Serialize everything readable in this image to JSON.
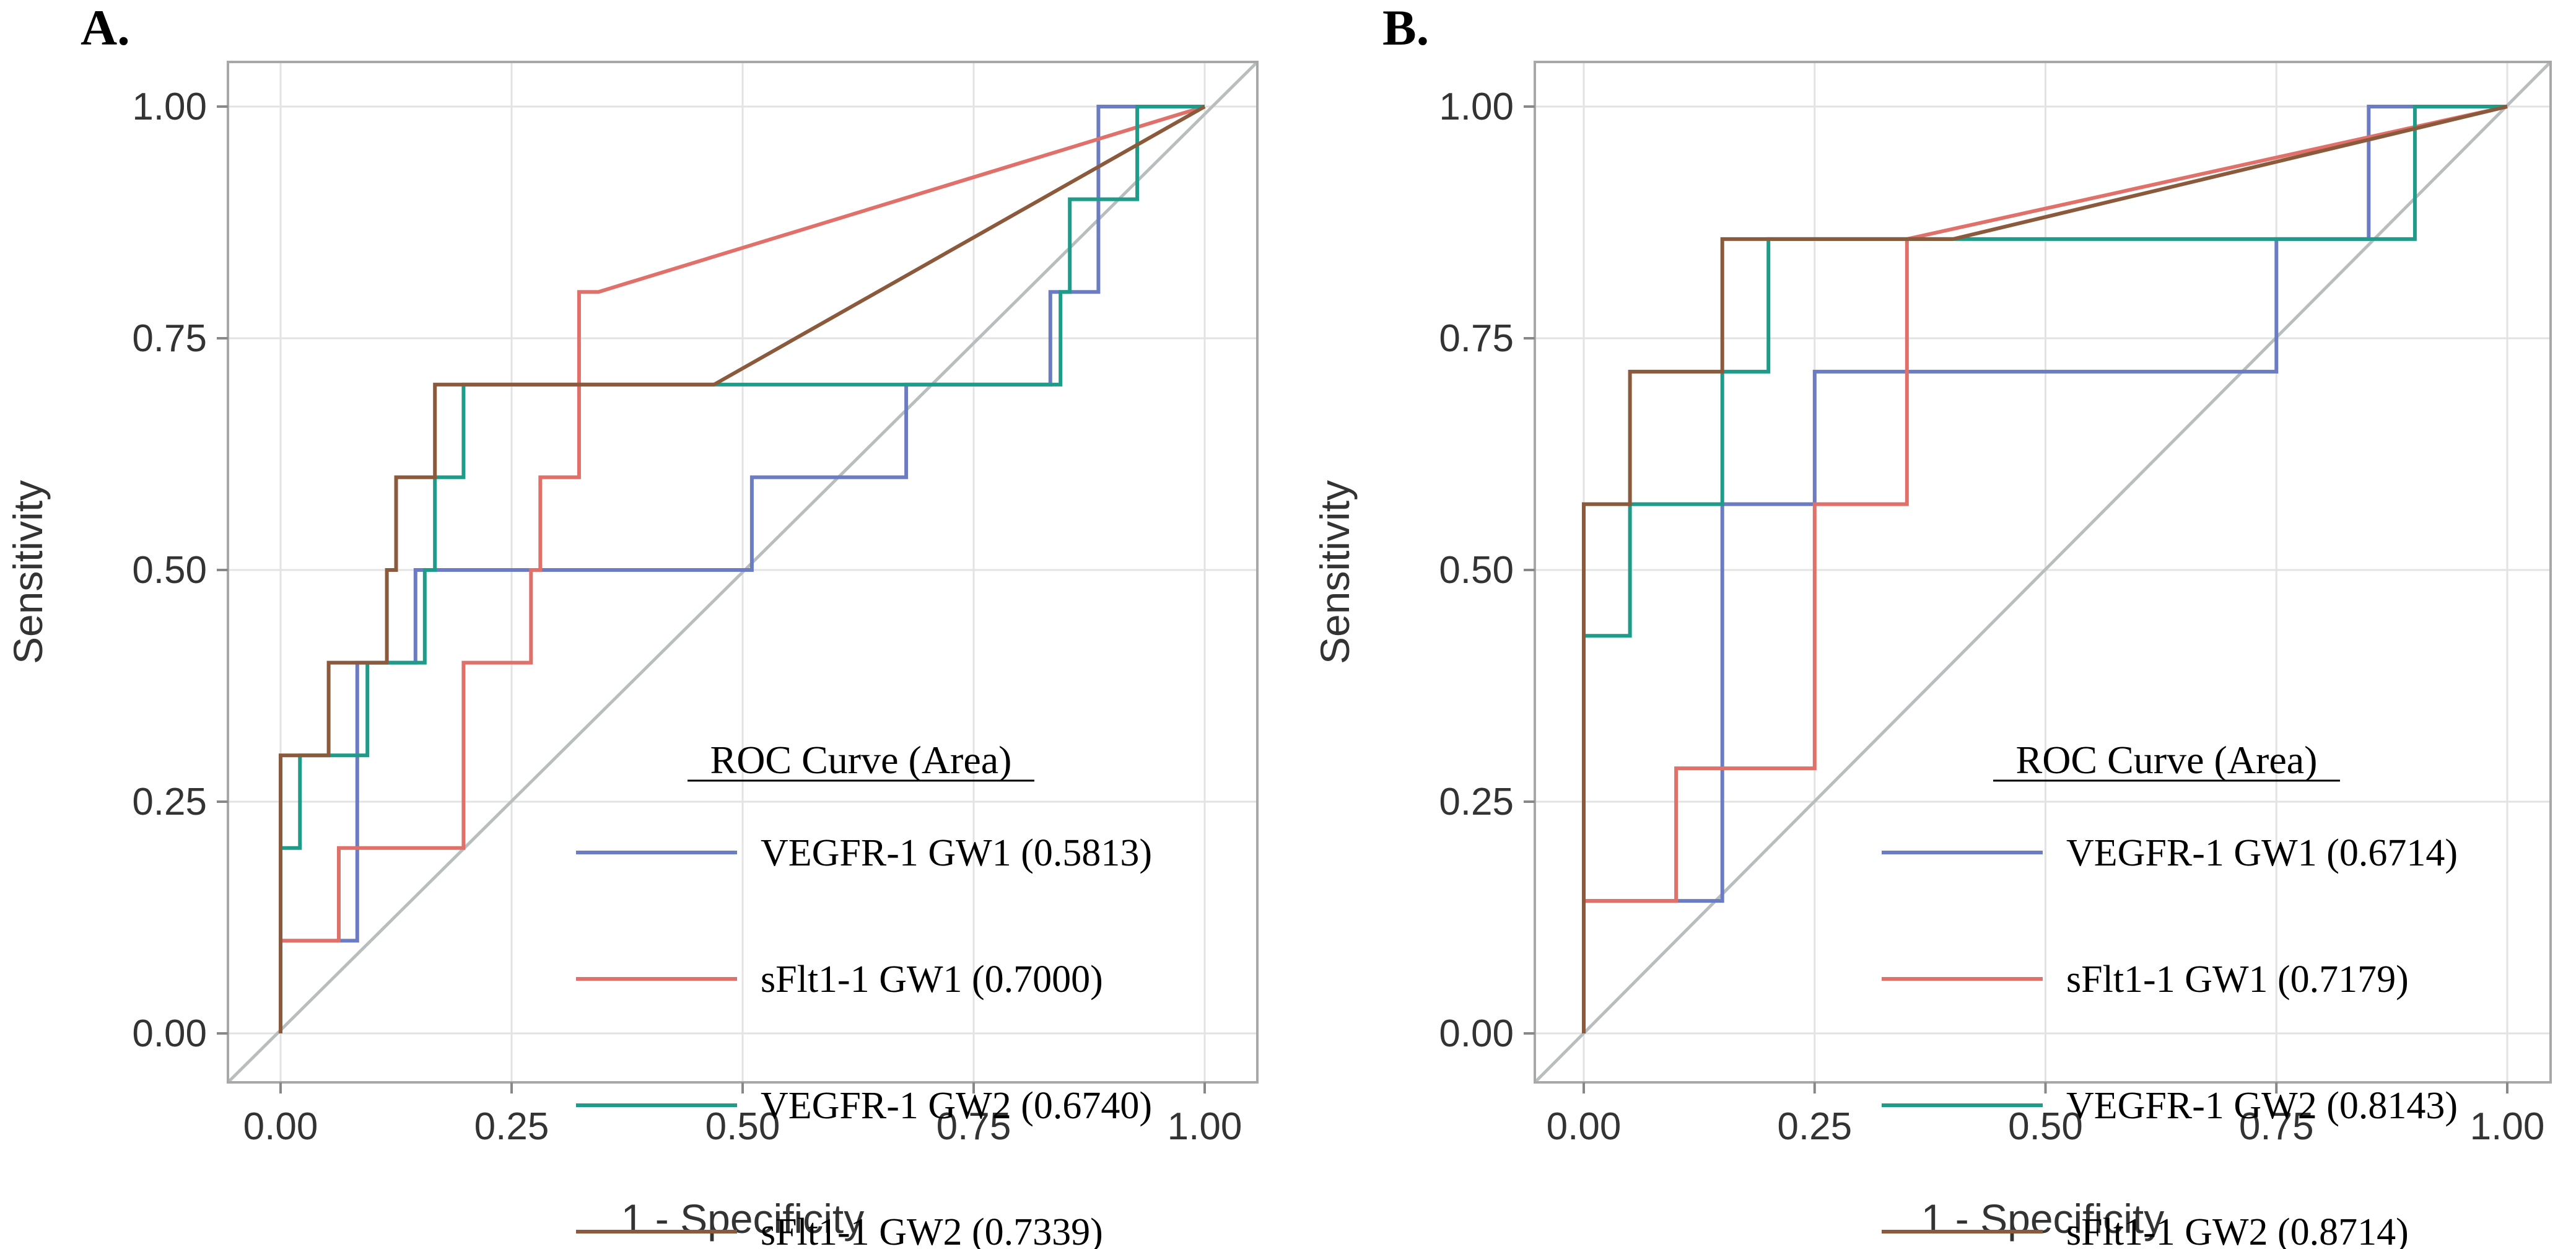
{
  "colors": {
    "vegfr1_gw1": "#6c7cc2",
    "sflt1_gw1": "#e0716a",
    "vegfr1_gw2": "#1f9b8a",
    "sflt1_gw2": "#8b5a3c"
  },
  "chart_data": [
    {
      "type": "line",
      "panel": "A.",
      "xlabel": "1 - Specificity",
      "ylabel": "Sensitivity",
      "xlim": [
        0,
        1
      ],
      "ylim": [
        0,
        1
      ],
      "xticks": [
        "0.00",
        "0.25",
        "0.50",
        "0.75",
        "1.00"
      ],
      "yticks": [
        "0.00",
        "0.25",
        "0.50",
        "0.75",
        "1.00"
      ],
      "grid": true,
      "reference_line": true,
      "legend_title": "ROC Curve (Area)",
      "legend_position": "bottom-right",
      "series": [
        {
          "name": "VEGFR-1 GW1 (0.5813)",
          "key": "vegfr1_gw1",
          "points": [
            [
              0,
              0
            ],
            [
              0,
              0.1
            ],
            [
              0.083,
              0.1
            ],
            [
              0.083,
              0.4
            ],
            [
              0.146,
              0.4
            ],
            [
              0.146,
              0.5
            ],
            [
              0.51,
              0.5
            ],
            [
              0.51,
              0.6
            ],
            [
              0.677,
              0.6
            ],
            [
              0.677,
              0.7
            ],
            [
              0.833,
              0.7
            ],
            [
              0.833,
              0.8
            ],
            [
              0.885,
              0.8
            ],
            [
              0.885,
              1.0
            ],
            [
              1,
              1
            ]
          ]
        },
        {
          "name": "sFlt1-1 GW1 (0.7000)",
          "key": "sflt1_gw1",
          "points": [
            [
              0,
              0
            ],
            [
              0,
              0.1
            ],
            [
              0.063,
              0.1
            ],
            [
              0.063,
              0.2
            ],
            [
              0.198,
              0.2
            ],
            [
              0.198,
              0.4
            ],
            [
              0.271,
              0.4
            ],
            [
              0.271,
              0.5
            ],
            [
              0.281,
              0.5
            ],
            [
              0.281,
              0.6
            ],
            [
              0.323,
              0.6
            ],
            [
              0.323,
              0.8
            ],
            [
              0.344,
              0.8
            ],
            [
              1,
              1
            ]
          ]
        },
        {
          "name": "VEGFR-1 GW2 (0.6740)",
          "key": "vegfr1_gw2",
          "points": [
            [
              0,
              0
            ],
            [
              0,
              0.2
            ],
            [
              0.021,
              0.2
            ],
            [
              0.021,
              0.3
            ],
            [
              0.094,
              0.3
            ],
            [
              0.094,
              0.4
            ],
            [
              0.156,
              0.4
            ],
            [
              0.156,
              0.5
            ],
            [
              0.167,
              0.5
            ],
            [
              0.167,
              0.6
            ],
            [
              0.198,
              0.6
            ],
            [
              0.198,
              0.7
            ],
            [
              0.844,
              0.7
            ],
            [
              0.844,
              0.8
            ],
            [
              0.854,
              0.8
            ],
            [
              0.854,
              0.9
            ],
            [
              0.927,
              0.9
            ],
            [
              0.927,
              1.0
            ],
            [
              1,
              1
            ]
          ]
        },
        {
          "name": "sFlt1-1 GW2 (0.7339)",
          "key": "sflt1_gw2",
          "points": [
            [
              0,
              0
            ],
            [
              0,
              0.3
            ],
            [
              0.052,
              0.3
            ],
            [
              0.052,
              0.4
            ],
            [
              0.115,
              0.4
            ],
            [
              0.115,
              0.5
            ],
            [
              0.125,
              0.5
            ],
            [
              0.125,
              0.6
            ],
            [
              0.167,
              0.6
            ],
            [
              0.167,
              0.7
            ],
            [
              0.469,
              0.7
            ],
            [
              1,
              1
            ]
          ]
        }
      ]
    },
    {
      "type": "line",
      "panel": "B.",
      "xlabel": "1 - Specificity",
      "ylabel": "Sensitivity",
      "xlim": [
        0,
        1
      ],
      "ylim": [
        0,
        1
      ],
      "xticks": [
        "0.00",
        "0.25",
        "0.50",
        "0.75",
        "1.00"
      ],
      "yticks": [
        "0.00",
        "0.25",
        "0.50",
        "0.75",
        "1.00"
      ],
      "grid": true,
      "reference_line": true,
      "legend_title": "ROC Curve (Area)",
      "legend_position": "bottom-right",
      "series": [
        {
          "name": "VEGFR-1 GW1 (0.6714)",
          "key": "vegfr1_gw1",
          "points": [
            [
              0,
              0
            ],
            [
              0,
              0.143
            ],
            [
              0.15,
              0.143
            ],
            [
              0.15,
              0.571
            ],
            [
              0.25,
              0.571
            ],
            [
              0.25,
              0.714
            ],
            [
              0.75,
              0.714
            ],
            [
              0.75,
              0.857
            ],
            [
              0.85,
              0.857
            ],
            [
              0.85,
              1.0
            ],
            [
              1,
              1
            ]
          ]
        },
        {
          "name": "sFlt1-1 GW1 (0.7179)",
          "key": "sflt1_gw1",
          "points": [
            [
              0,
              0
            ],
            [
              0,
              0.143
            ],
            [
              0.1,
              0.143
            ],
            [
              0.1,
              0.286
            ],
            [
              0.25,
              0.286
            ],
            [
              0.25,
              0.571
            ],
            [
              0.35,
              0.571
            ],
            [
              0.35,
              0.857
            ],
            [
              1,
              1
            ]
          ]
        },
        {
          "name": "VEGFR-1 GW2 (0.8143)",
          "key": "vegfr1_gw2",
          "points": [
            [
              0,
              0
            ],
            [
              0,
              0.429
            ],
            [
              0.05,
              0.429
            ],
            [
              0.05,
              0.571
            ],
            [
              0.15,
              0.571
            ],
            [
              0.15,
              0.714
            ],
            [
              0.2,
              0.714
            ],
            [
              0.2,
              0.857
            ],
            [
              0.9,
              0.857
            ],
            [
              0.9,
              1.0
            ],
            [
              1,
              1
            ]
          ]
        },
        {
          "name": "sFlt1-1 GW2 (0.8714)",
          "key": "sflt1_gw2",
          "points": [
            [
              0,
              0
            ],
            [
              0,
              0.571
            ],
            [
              0.05,
              0.571
            ],
            [
              0.05,
              0.714
            ],
            [
              0.15,
              0.714
            ],
            [
              0.15,
              0.857
            ],
            [
              0.4,
              0.857
            ],
            [
              1,
              1
            ]
          ]
        }
      ]
    }
  ]
}
